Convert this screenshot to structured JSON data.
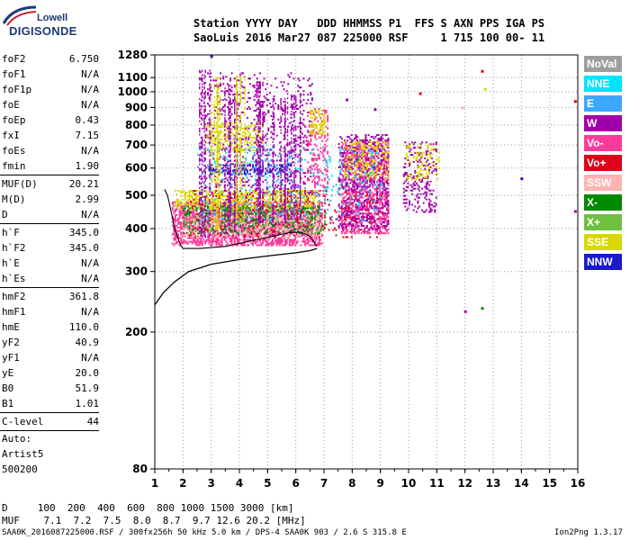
{
  "logo": {
    "brand_line1": "Lowell",
    "brand_line2": "DIGISONDE"
  },
  "header": {
    "line1": "Station YYYY DAY   DDD HHMMSS P1  FFS S AXN PPS IGA PS",
    "line2": "SaoLuis 2016 Mar27 087 225000 RSF     1 715 100 00- 11"
  },
  "params": {
    "group1": [
      {
        "name": "foF2",
        "value": "6.750"
      },
      {
        "name": "foF1",
        "value": "N/A"
      },
      {
        "name": "foF1p",
        "value": "N/A"
      },
      {
        "name": "foE",
        "value": "N/A"
      },
      {
        "name": "foEp",
        "value": "0.43"
      },
      {
        "name": "fxI",
        "value": "7.15"
      },
      {
        "name": "foEs",
        "value": "N/A"
      },
      {
        "name": "fmin",
        "value": "1.90"
      }
    ],
    "group2": [
      {
        "name": "MUF(D)",
        "value": "20.21"
      },
      {
        "name": "M(D)",
        "value": "2.99"
      },
      {
        "name": "D",
        "value": "N/A"
      }
    ],
    "group3": [
      {
        "name": "h`F",
        "value": "345.0"
      },
      {
        "name": "h`F2",
        "value": "345.0"
      },
      {
        "name": "h`E",
        "value": "N/A"
      },
      {
        "name": "h`Es",
        "value": "N/A"
      }
    ],
    "group4": [
      {
        "name": "hmF2",
        "value": "361.8"
      },
      {
        "name": "hmF1",
        "value": "N/A"
      },
      {
        "name": "hmE",
        "value": "110.0"
      },
      {
        "name": "yF2",
        "value": "40.9"
      },
      {
        "name": "yF1",
        "value": "N/A"
      },
      {
        "name": "yE",
        "value": "20.0"
      },
      {
        "name": "B0",
        "value": "51.9"
      },
      {
        "name": "B1",
        "value": "1.01"
      }
    ],
    "group5": [
      {
        "name": "C-level",
        "value": "44"
      }
    ]
  },
  "autoscale": {
    "line1": "Auto:",
    "line2": "Artist5",
    "line3": "500200"
  },
  "legend": [
    {
      "label": "NoVal",
      "color": "#9e9e9e"
    },
    {
      "label": "NNE",
      "color": "#00e5ff"
    },
    {
      "label": "E",
      "color": "#3ba7ff"
    },
    {
      "label": "W",
      "color": "#a000a8"
    },
    {
      "label": "Vo-",
      "color": "#ff3a9a"
    },
    {
      "label": "Vo+",
      "color": "#e0001a"
    },
    {
      "label": "SSW",
      "color": "#ffb3b3"
    },
    {
      "label": "X-",
      "color": "#008a00"
    },
    {
      "label": "X+",
      "color": "#6fbf40"
    },
    {
      "label": "SSE",
      "color": "#d8d800"
    },
    {
      "label": "NNW",
      "color": "#1a1acc"
    }
  ],
  "mufs": {
    "d_line": "D     100  200  400  600  800 1000 1500 3000 [km]",
    "muf_line": "MUF    7.1  7.2  7.5  8.0  8.7  9.7 12.6 20.2 [MHz]"
  },
  "footer": {
    "left": "SAA0K_2016087225000.RSF / 300fx256h 50 kHz 5.0 km / DPS-4 SAA0K 903 / 2.6 S 315.8 E",
    "right": "Ion2Png 1.3.17"
  },
  "chart_data": {
    "type": "scatter",
    "title": "",
    "xlabel": "",
    "ylabel": "",
    "xlim": [
      1,
      16
    ],
    "ylim": [
      80,
      1280
    ],
    "y_scale": "log",
    "x_ticks": [
      1,
      2,
      3,
      4,
      5,
      6,
      7,
      8,
      9,
      10,
      11,
      12,
      13,
      14,
      15,
      16
    ],
    "x_tick_labels": [
      "1",
      "2",
      "3",
      "4",
      "5",
      "6",
      "7",
      "8",
      "9",
      "10",
      "11",
      "12",
      "13",
      "14",
      "15",
      "16"
    ],
    "y_ticks": [
      80,
      200,
      300,
      400,
      500,
      600,
      700,
      800,
      900,
      1000,
      1100,
      1280
    ],
    "y_tick_labels": [
      "80",
      "200",
      "300",
      "400",
      "500",
      "600",
      "700",
      "800",
      "900",
      "1000",
      "1100",
      "1280"
    ],
    "grid": true,
    "echo_clusters": [
      {
        "label": "Vo-",
        "color": "#ff3a9a",
        "x": [
          1.6,
          6.9
        ],
        "y": [
          360,
          480
        ],
        "density": 0.55
      },
      {
        "label": "W",
        "color": "#a000a8",
        "x": [
          2.8,
          6.6
        ],
        "y": [
          380,
          1150
        ],
        "density": 0.12
      },
      {
        "label": "SSE",
        "color": "#d8d800",
        "x": [
          2.8,
          4.8
        ],
        "y": [
          680,
          820
        ],
        "density": 0.25
      },
      {
        "label": "SSE",
        "color": "#d8d800",
        "x": [
          1.7,
          6.8
        ],
        "y": [
          460,
          520
        ],
        "density": 0.4
      },
      {
        "label": "X-",
        "color": "#008a00",
        "x": [
          2.0,
          7.0
        ],
        "y": [
          390,
          470
        ],
        "density": 0.25
      },
      {
        "label": "NNW",
        "color": "#1a1acc",
        "x": [
          2.9,
          5.8
        ],
        "y": [
          580,
          620
        ],
        "density": 0.35
      },
      {
        "label": "Vo-",
        "color": "#ff3a9a",
        "x": [
          7.6,
          9.3
        ],
        "y": [
          390,
          720
        ],
        "density": 0.45
      },
      {
        "label": "W",
        "color": "#a000a8",
        "x": [
          7.5,
          9.3
        ],
        "y": [
          400,
          760
        ],
        "density": 0.25
      },
      {
        "label": "SSE",
        "color": "#d8d800",
        "x": [
          7.7,
          9.3
        ],
        "y": [
          560,
          720
        ],
        "density": 0.25
      },
      {
        "label": "Vo-",
        "color": "#ff3a9a",
        "x": [
          6.4,
          7.1
        ],
        "y": [
          500,
          900
        ],
        "density": 0.25
      },
      {
        "label": "SSE",
        "color": "#d8d800",
        "x": [
          6.5,
          7.0
        ],
        "y": [
          760,
          890
        ],
        "density": 0.35
      },
      {
        "label": "W",
        "color": "#a000a8",
        "x": [
          9.8,
          11.0
        ],
        "y": [
          450,
          720
        ],
        "density": 0.2
      },
      {
        "label": "SSE",
        "color": "#d8d800",
        "x": [
          9.9,
          11.1
        ],
        "y": [
          560,
          710
        ],
        "density": 0.2
      },
      {
        "label": "SSW",
        "color": "#ffb3b3",
        "x": [
          2.0,
          6.8
        ],
        "y": [
          380,
          440
        ],
        "density": 0.25
      },
      {
        "label": "NNE",
        "color": "#00e5ff",
        "x": [
          2.5,
          9.0
        ],
        "y": [
          420,
          700
        ],
        "density": 0.03
      },
      {
        "label": "E",
        "color": "#3ba7ff",
        "x": [
          2.5,
          9.0
        ],
        "y": [
          420,
          700
        ],
        "density": 0.03
      },
      {
        "label": "Vo+",
        "color": "#e0001a",
        "x": [
          2.0,
          9.0
        ],
        "y": [
          380,
          520
        ],
        "density": 0.06
      },
      {
        "label": "X+",
        "color": "#6fbf40",
        "x": [
          2.0,
          7.0
        ],
        "y": [
          390,
          470
        ],
        "density": 0.08
      }
    ],
    "vertical_lines": [
      {
        "x": 2.8,
        "y": [
          380,
          1160
        ],
        "color": "#a000a8"
      },
      {
        "x": 3.2,
        "y": [
          400,
          1110
        ],
        "color": "#d8d800"
      },
      {
        "x": 3.7,
        "y": [
          400,
          1060
        ],
        "color": "#a000a8"
      },
      {
        "x": 4.1,
        "y": [
          420,
          1120
        ],
        "color": "#d8d800"
      },
      {
        "x": 4.6,
        "y": [
          420,
          1080
        ],
        "color": "#a000a8"
      },
      {
        "x": 5.4,
        "y": [
          420,
          960
        ],
        "color": "#a000a8"
      },
      {
        "x": 5.9,
        "y": [
          430,
          1000
        ],
        "color": "#a000a8"
      }
    ],
    "isolated_points": [
      {
        "x": 12.6,
        "y": 1150,
        "color": "#e0001a"
      },
      {
        "x": 12.7,
        "y": 1020,
        "color": "#d8d800"
      },
      {
        "x": 12.0,
        "y": 230,
        "color": "#a000a8"
      },
      {
        "x": 12.6,
        "y": 235,
        "color": "#008a00"
      },
      {
        "x": 14.0,
        "y": 560,
        "color": "#1a1acc"
      },
      {
        "x": 15.9,
        "y": 450,
        "color": "#a000a8"
      },
      {
        "x": 15.9,
        "y": 940,
        "color": "#e0001a"
      },
      {
        "x": 10.4,
        "y": 990,
        "color": "#e0001a"
      },
      {
        "x": 7.8,
        "y": 950,
        "color": "#a000a8"
      },
      {
        "x": 8.8,
        "y": 890,
        "color": "#a000a8"
      },
      {
        "x": 11.9,
        "y": 900,
        "color": "#ffb3b3"
      },
      {
        "x": 3.0,
        "y": 1270,
        "color": "#1a1acc"
      }
    ],
    "virtual_height_trace": [
      [
        1.0,
        240
      ],
      [
        1.3,
        260
      ],
      [
        1.7,
        280
      ],
      [
        2.2,
        300
      ],
      [
        3.0,
        315
      ],
      [
        4.0,
        325
      ],
      [
        5.0,
        333
      ],
      [
        6.0,
        340
      ],
      [
        6.5,
        345
      ],
      [
        6.75,
        350
      ]
    ],
    "profile_trace": [
      [
        6.75,
        355
      ],
      [
        6.5,
        380
      ],
      [
        6.2,
        390
      ],
      [
        5.8,
        390
      ],
      [
        5.2,
        380
      ],
      [
        4.5,
        370
      ],
      [
        3.5,
        355
      ],
      [
        2.6,
        350
      ],
      [
        2.0,
        350
      ],
      [
        1.9,
        360
      ],
      [
        1.8,
        380
      ],
      [
        1.7,
        400
      ],
      [
        1.65,
        420
      ],
      [
        1.6,
        440
      ],
      [
        1.55,
        460
      ],
      [
        1.5,
        480
      ],
      [
        1.45,
        500
      ],
      [
        1.35,
        520
      ]
    ]
  }
}
